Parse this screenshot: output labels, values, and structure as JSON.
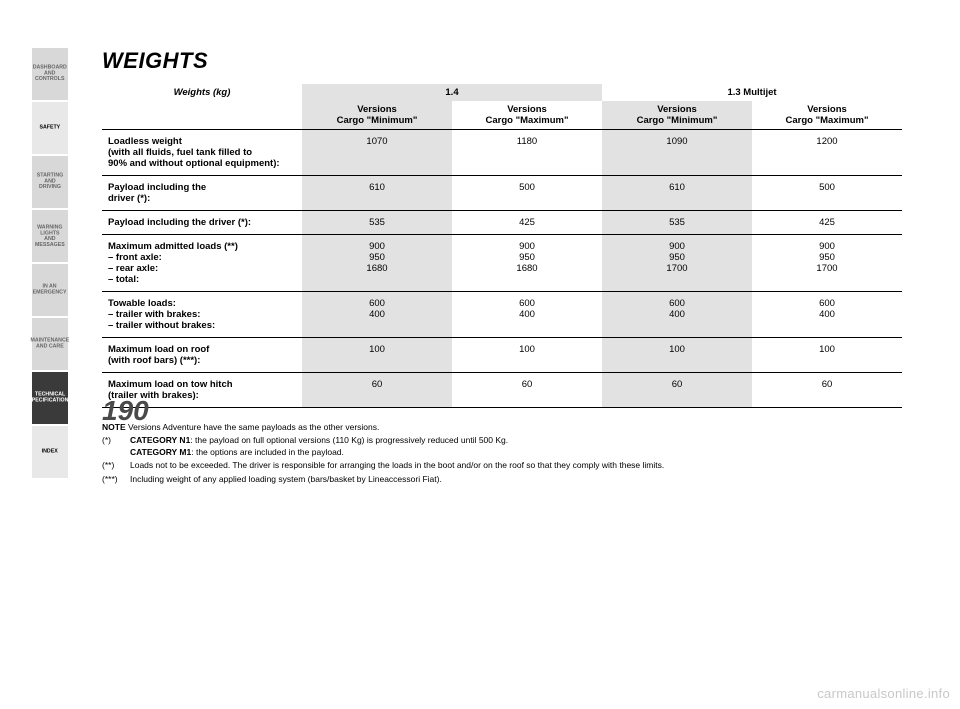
{
  "pageNumber": "190",
  "title": "WEIGHTS",
  "watermark": "carmanualsonline.info",
  "sidebarTabs": [
    {
      "label": "DASHBOARD AND CONTROLS",
      "style": "light"
    },
    {
      "label": "SAFETY",
      "style": "blank"
    },
    {
      "label": "STARTING AND DRIVING",
      "style": "light"
    },
    {
      "label": "WARNING LIGHTS AND MESSAGES",
      "style": "light"
    },
    {
      "label": "IN AN EMERGENCY",
      "style": "light"
    },
    {
      "label": "MAINTENANCE AND CARE",
      "style": "light"
    },
    {
      "label": "TECHNICAL SPECIFICATIONS",
      "style": "dark"
    },
    {
      "label": "INDEX",
      "style": "blank"
    }
  ],
  "table": {
    "unitsHeader": "Weights (kg)",
    "engineGroups": [
      "1.4",
      "1.3 Multijet"
    ],
    "subHeaders": [
      "Versions\nCargo \"Minimum\"",
      "Versions\nCargo \"Maximum\"",
      "Versions\nCargo \"Minimum\"",
      "Versions\nCargo \"Maximum\""
    ],
    "rows": [
      {
        "label": "Loadless weight\n(with all fluids, fuel tank filled to\n90% and without optional equipment):",
        "values": [
          "1070",
          "1180",
          "1090",
          "1200"
        ],
        "divider": true
      },
      {
        "label": "Payload including the\ndriver (*):",
        "values": [
          "610",
          "500",
          "610",
          "500"
        ],
        "divider": true
      },
      {
        "label": "Payload including the driver (*):",
        "values": [
          "535",
          "425",
          "535",
          "425"
        ],
        "divider": true
      },
      {
        "label": "Maximum admitted loads (**)\n– front axle:\n– rear axle:\n– total:",
        "values": [
          "900\n950\n1680",
          "900\n950\n1680",
          "900\n950\n1700",
          "900\n950\n1700"
        ],
        "divider": true
      },
      {
        "label": "Towable loads:\n– trailer with brakes:\n– trailer without brakes:",
        "values": [
          "600\n400",
          "600\n400",
          "600\n400",
          "600\n400"
        ],
        "divider": true
      },
      {
        "label": "Maximum load on roof\n(with roof bars) (***):",
        "values": [
          "100",
          "100",
          "100",
          "100"
        ],
        "divider": true
      },
      {
        "label": "Maximum load on tow hitch\n(trailer with brakes):",
        "values": [
          "60",
          "60",
          "60",
          "60"
        ],
        "divider": true
      }
    ]
  },
  "notes": [
    {
      "marker": "NOTE",
      "text": "Versions Adventure have the same payloads as the other versions."
    },
    {
      "marker": "(*)",
      "text": "CATEGORY N1: the payload on full optional versions (110 Kg) is progressively reduced until 500 Kg.\nCATEGORY M1: the options are included in the payload."
    },
    {
      "marker": "(**)",
      "text": "Loads not to be exceeded. The driver is responsible for arranging the loads in the boot and/or on the roof so that they comply with these limits."
    },
    {
      "marker": "(***)",
      "text": "Including weight of any applied loading system (bars/basket by Lineaccessori Fiat)."
    }
  ]
}
